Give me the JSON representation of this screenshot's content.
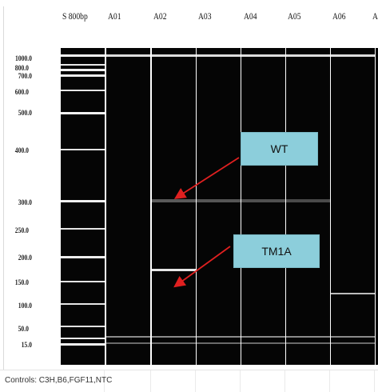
{
  "size_labels": [
    "1000.0",
    "800.0",
    "700.0",
    "600.0",
    "500.0",
    "400.0",
    "300.0",
    "250.0",
    "200.0",
    "150.0",
    "100.0",
    "50.0",
    "15.0"
  ],
  "lanes": [
    "S 800bp",
    "A01",
    "A02",
    "A03",
    "A04",
    "A05",
    "A06"
  ],
  "last_lane_partial": "A",
  "callouts": {
    "wt": "WT",
    "tm1a": "TM1A"
  },
  "controls": "Controls: C3H,B6,FGF11,NTC",
  "colors": {
    "gel": "#050505",
    "band": "#f2f2f2",
    "callout": "#8ccedb",
    "arrow": "#e02020"
  }
}
